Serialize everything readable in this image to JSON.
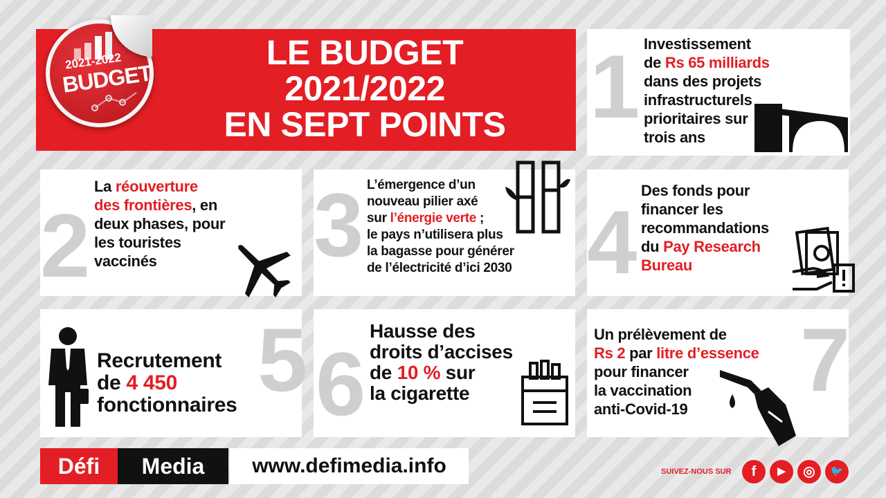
{
  "sticker": {
    "years": "2021-2022",
    "label": "BUDGET"
  },
  "title": {
    "lines": [
      "LE BUDGET",
      "2021/2022",
      "EN SEPT POINTS"
    ]
  },
  "colors": {
    "accent": "#e31e24",
    "number_gray": "#cfcfd0",
    "dark": "#111111"
  },
  "points": [
    {
      "number": "1",
      "icon": "bridge-icon",
      "lines": [
        [
          {
            "t": "Investissement"
          }
        ],
        [
          {
            "t": "de "
          },
          {
            "t": "Rs 65 milliards",
            "red": true
          }
        ],
        [
          {
            "t": "dans des projets"
          }
        ],
        [
          {
            "t": "infrastructurels"
          }
        ],
        [
          {
            "t": "prioritaires sur"
          }
        ],
        [
          {
            "t": "trois ans"
          }
        ]
      ]
    },
    {
      "number": "2",
      "icon": "airplane-icon",
      "lines": [
        [
          {
            "t": "La "
          },
          {
            "t": "réouverture",
            "red": true
          }
        ],
        [
          {
            "t": "des frontières",
            "red": true
          },
          {
            "t": ", en"
          }
        ],
        [
          {
            "t": "deux phases, pour"
          }
        ],
        [
          {
            "t": "les touristes"
          }
        ],
        [
          {
            "t": "vaccinés"
          }
        ]
      ]
    },
    {
      "number": "3",
      "icon": "sugarcane-icon",
      "lines": [
        [
          {
            "t": "L’émergence d’un"
          }
        ],
        [
          {
            "t": "nouveau pilier axé"
          }
        ],
        [
          {
            "t": "sur "
          },
          {
            "t": "l’énergie verte",
            "red": true
          },
          {
            "t": " ;"
          }
        ],
        [
          {
            "t": "le pays n’utilisera plus"
          }
        ],
        [
          {
            "t": "la bagasse pour générer"
          }
        ],
        [
          {
            "t": "de l’électricité d’ici 2030"
          }
        ]
      ]
    },
    {
      "number": "4",
      "icon": "money-hand-icon",
      "lines": [
        [
          {
            "t": "Des fonds pour"
          }
        ],
        [
          {
            "t": "financer les"
          }
        ],
        [
          {
            "t": "recommandations"
          }
        ],
        [
          {
            "t": "du "
          },
          {
            "t": "Pay Research",
            "red": true
          }
        ],
        [
          {
            "t": "Bureau",
            "red": true
          }
        ]
      ]
    },
    {
      "number": "5",
      "icon": "businessman-icon",
      "lines": [
        [
          {
            "t": "Recrutement"
          }
        ],
        [
          {
            "t": "de "
          },
          {
            "t": "4 450",
            "red": true
          }
        ],
        [
          {
            "t": "fonctionnaires"
          }
        ]
      ]
    },
    {
      "number": "6",
      "icon": "cigarette-pack-icon",
      "lines": [
        [
          {
            "t": "Hausse des"
          }
        ],
        [
          {
            "t": "droits d’accises"
          }
        ],
        [
          {
            "t": "de "
          },
          {
            "t": "10 %",
            "red": true
          },
          {
            "t": " sur"
          }
        ],
        [
          {
            "t": "la cigarette"
          }
        ]
      ]
    },
    {
      "number": "7",
      "icon": "fuel-nozzle-icon",
      "lines": [
        [
          {
            "t": "Un prélèvement de"
          }
        ],
        [
          {
            "t": "Rs 2",
            "red": true
          },
          {
            "t": " par "
          },
          {
            "t": "litre d’essence",
            "red": true
          }
        ],
        [
          {
            "t": "pour financer"
          }
        ],
        [
          {
            "t": "la vaccination"
          }
        ],
        [
          {
            "t": "anti-Covid-19"
          }
        ]
      ]
    }
  ],
  "footer": {
    "brand_part1": "Défi",
    "brand_part2": "Media",
    "url": "www.defimedia.info",
    "follow": "SUIVEZ-NOUS SUR",
    "social": [
      {
        "icon": "facebook-icon",
        "glyph": "f"
      },
      {
        "icon": "youtube-icon",
        "glyph": "▶"
      },
      {
        "icon": "instagram-icon",
        "glyph": "◎"
      },
      {
        "icon": "twitter-icon",
        "glyph": "🐦"
      }
    ]
  }
}
